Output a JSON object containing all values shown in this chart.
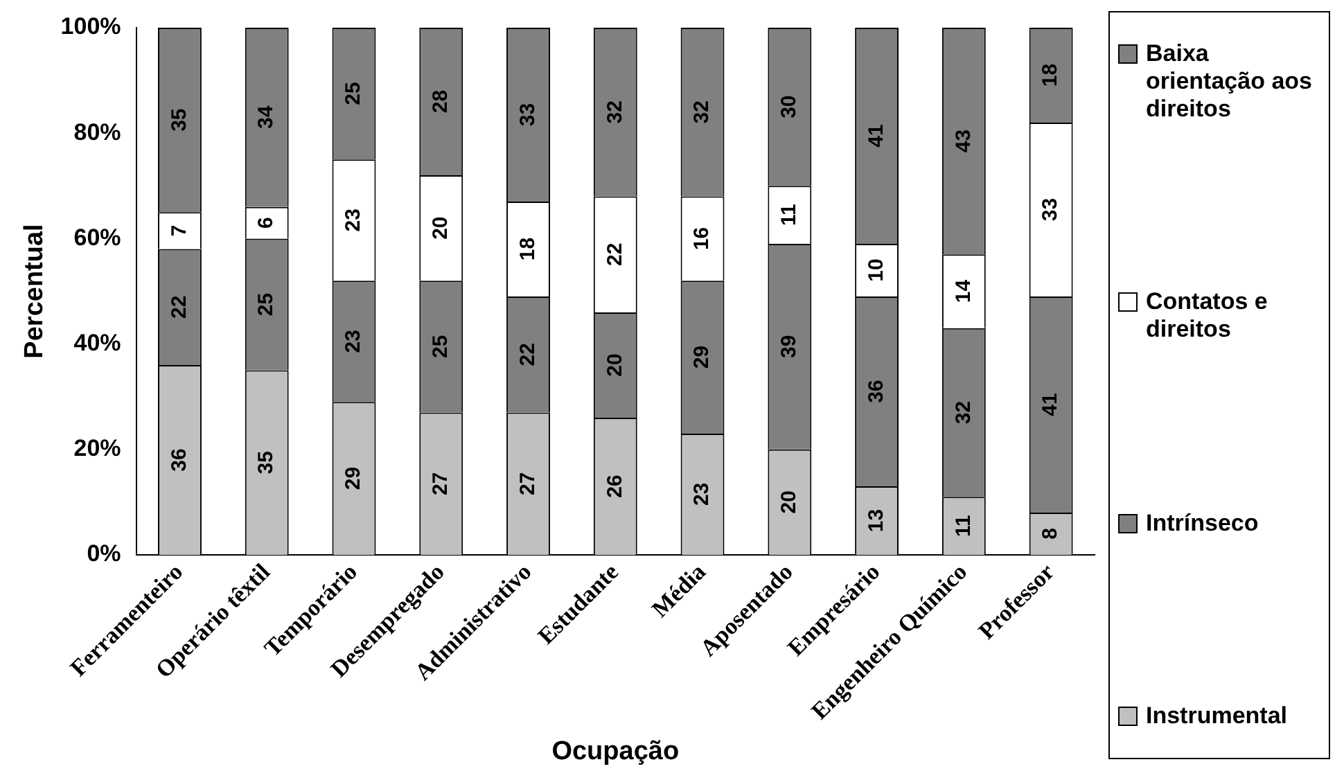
{
  "chart_data": {
    "type": "bar",
    "stacked": true,
    "xlabel": "Ocupação",
    "ylabel": "Percentual",
    "categories": [
      "Ferramenteiro",
      "Operário têxtil",
      "Temporário",
      "Desempregado",
      "Administrativo",
      "Estudante",
      "Média",
      "Aposentado",
      "Empresário",
      "Engenheiro Químico",
      "Professor"
    ],
    "series": [
      {
        "name": "Instrumental",
        "color": "#c0c0c0",
        "values": [
          36,
          35,
          29,
          27,
          27,
          26,
          23,
          20,
          13,
          11,
          8
        ]
      },
      {
        "name": "Intrínseco",
        "color": "#808080",
        "values": [
          22,
          25,
          23,
          25,
          22,
          20,
          29,
          39,
          36,
          32,
          41
        ]
      },
      {
        "name": "Contatos e direitos",
        "color": "#ffffff",
        "values": [
          7,
          6,
          23,
          20,
          18,
          22,
          16,
          11,
          10,
          14,
          33
        ]
      },
      {
        "name": "Baixa orientação aos direitos",
        "color": "#808080",
        "values": [
          35,
          34,
          25,
          28,
          33,
          32,
          32,
          30,
          41,
          43,
          18
        ]
      }
    ],
    "ylim": [
      0,
      100
    ],
    "yticks": [
      {
        "value": 0,
        "label": "0%"
      },
      {
        "value": 20,
        "label": "20%"
      },
      {
        "value": 40,
        "label": "40%"
      },
      {
        "value": 60,
        "label": "60%"
      },
      {
        "value": 80,
        "label": "80%"
      },
      {
        "value": 100,
        "label": "100%"
      }
    ],
    "grid": false,
    "legend": "right",
    "data_labels": true
  }
}
